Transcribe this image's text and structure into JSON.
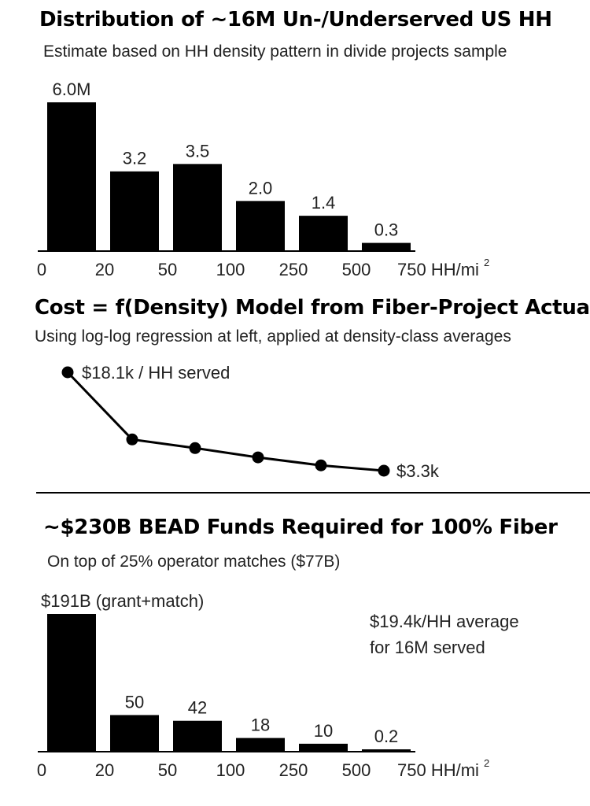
{
  "panel1": {
    "title": "Distribution of ~16M Un-/Underserved US HH",
    "subtitle": "Estimate based on HH density pattern in divide projects sample"
  },
  "panel2": {
    "title": "Cost = f(Density) Model from Fiber-Project Actuals",
    "subtitle": "Using log-log regression at left, applied at density-class averages"
  },
  "panel3": {
    "title": "~$230B BEAD Funds Required for 100% Fiber",
    "subtitle": "On top of 25% operator matches ($77B)",
    "note_line1": "$19.4k/HH average",
    "note_line2": "for 16M served"
  },
  "colors": {
    "bar": "#000000",
    "line": "#000000",
    "text": "#222222"
  },
  "chart_data": [
    {
      "type": "bar",
      "x_ticks": [
        "0",
        "20",
        "50",
        "100",
        "250",
        "500",
        "750"
      ],
      "x_unit": "HH/mi",
      "x_unit_sup": "2",
      "categories": [
        "0-20",
        "20-50",
        "50-100",
        "100-250",
        "250-500",
        "500-750"
      ],
      "values": [
        6.0,
        3.2,
        3.5,
        2.0,
        1.4,
        0.3
      ],
      "labels": [
        "6.0M",
        "3.2",
        "3.5",
        "2.0",
        "1.4",
        "0.3"
      ],
      "ylim": [
        0,
        6.0
      ]
    },
    {
      "type": "line",
      "categories": [
        "0-20",
        "20-50",
        "50-100",
        "100-250",
        "250-500",
        "500-750"
      ],
      "values": [
        18.1,
        8.0,
        6.7,
        5.3,
        4.1,
        3.3
      ],
      "start_label": "$18.1k / HH served",
      "end_label": "$3.3k",
      "ylim": [
        3.3,
        18.1
      ]
    },
    {
      "type": "bar",
      "x_ticks": [
        "0",
        "20",
        "50",
        "100",
        "250",
        "500",
        "750"
      ],
      "x_unit": "HH/mi",
      "x_unit_sup": "2",
      "categories": [
        "0-20",
        "20-50",
        "50-100",
        "100-250",
        "250-500",
        "500-750"
      ],
      "values": [
        191,
        50,
        42,
        18,
        10,
        0.2
      ],
      "labels": [
        "$191B (grant+match)",
        "50",
        "42",
        "18",
        "10",
        "0.2"
      ],
      "ylim": [
        0,
        191
      ]
    }
  ]
}
